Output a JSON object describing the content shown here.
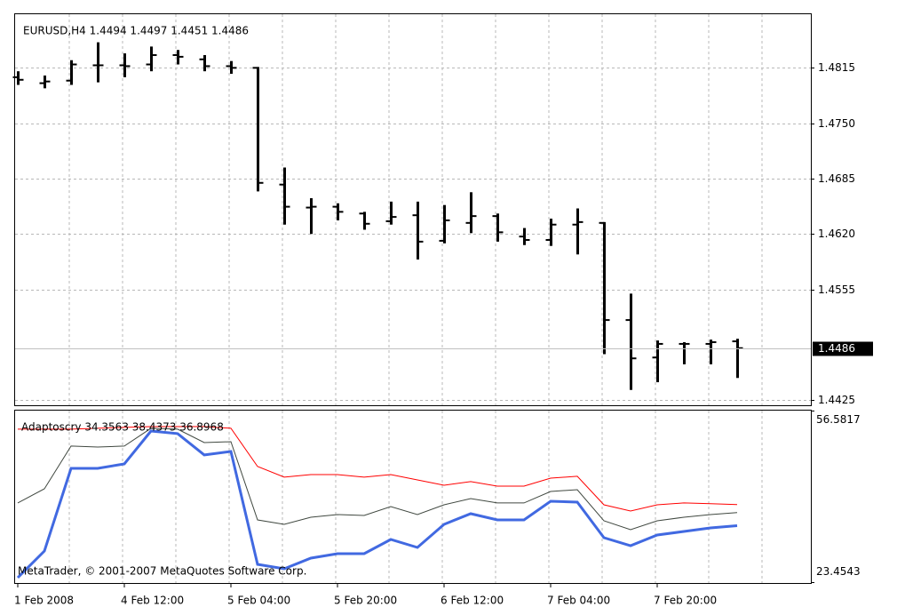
{
  "chart_data": [
    {
      "type": "ohlc",
      "title": "EURUSD,H4  1.4494 1.4497 1.4451 1.4486",
      "categories": [
        "1 Feb 2008",
        null,
        null,
        null,
        "4 Feb 12:00",
        null,
        null,
        null,
        "5 Feb 04:00",
        null,
        null,
        null,
        "5 Feb 20:00",
        null,
        null,
        null,
        "6 Feb 12:00",
        null,
        null,
        null,
        "7 Feb 04:00",
        null,
        null,
        null,
        "7 Feb 20:00",
        null,
        null,
        null
      ],
      "open": [
        1.4804,
        1.4797,
        1.48,
        1.4818,
        1.4818,
        1.4819,
        1.483,
        1.4825,
        1.4817,
        1.4815,
        1.4678,
        1.4651,
        1.4652,
        1.4644,
        1.4635,
        1.4642,
        1.4612,
        1.4633,
        1.4641,
        1.4617,
        1.4613,
        1.4631,
        1.4633,
        1.4519,
        1.4475,
        1.4491,
        1.4491,
        1.4494
      ],
      "high": [
        1.4811,
        1.4806,
        1.4824,
        1.4845,
        1.4832,
        1.484,
        1.4836,
        1.483,
        1.4823,
        1.4816,
        1.4698,
        1.4662,
        1.4656,
        1.4646,
        1.4658,
        1.4658,
        1.4654,
        1.4669,
        1.4644,
        1.4627,
        1.4638,
        1.465,
        1.4634,
        1.455,
        1.4495,
        1.4493,
        1.4496,
        1.4497
      ],
      "low": [
        1.4795,
        1.4791,
        1.4795,
        1.4798,
        1.4804,
        1.4811,
        1.4819,
        1.4811,
        1.4808,
        1.467,
        1.4631,
        1.462,
        1.4636,
        1.4625,
        1.4631,
        1.459,
        1.4609,
        1.4621,
        1.4611,
        1.4607,
        1.4606,
        1.4596,
        1.4479,
        1.4437,
        1.4446,
        1.4467,
        1.4467,
        1.4451
      ],
      "close": [
        1.4801,
        1.4799,
        1.4819,
        1.4818,
        1.4817,
        1.483,
        1.4828,
        1.4817,
        1.4815,
        1.468,
        1.4652,
        1.4652,
        1.4646,
        1.4632,
        1.464,
        1.4611,
        1.4636,
        1.4641,
        1.4622,
        1.4613,
        1.4631,
        1.4634,
        1.4519,
        1.4474,
        1.4491,
        1.4491,
        1.4493,
        1.4486
      ],
      "color": "#000000",
      "ylim": [
        1.442,
        1.4879
      ],
      "yticks": [
        1.4815,
        {
          "value": 1.475,
          "label": "1.4750"
        },
        1.4685,
        {
          "value": 1.462,
          "label": "1.4620"
        },
        1.4555,
        1.4425
      ],
      "grid": true
    },
    {
      "type": "line",
      "title": "Adaptoscry 34.3563 38.4373 36.8968",
      "annotation": "MetaTrader, © 2001-2007 MetaQuotes Software Corp.",
      "series": [
        {
          "name": "upper",
          "color": "#ff0000",
          "values": [
            52.99,
            52.99,
            52.99,
            53.16,
            53.33,
            53.5,
            53.5,
            53.5,
            53.16,
            45.78,
            43.72,
            44.23,
            44.23,
            43.72,
            44.23,
            43.2,
            42.17,
            42.86,
            42.0,
            42.0,
            43.54,
            43.89,
            38.39,
            37.19,
            38.39,
            38.74,
            38.6,
            38.4373
          ]
        },
        {
          "name": "middle",
          "color": "#404840",
          "values": [
            38.74,
            41.48,
            49.73,
            49.55,
            49.73,
            53.16,
            52.99,
            50.41,
            50.58,
            35.47,
            34.61,
            35.99,
            36.5,
            36.33,
            38.05,
            36.5,
            38.39,
            39.59,
            38.74,
            38.74,
            40.97,
            41.31,
            35.3,
            33.58,
            35.3,
            35.99,
            36.5,
            36.8968
          ]
        },
        {
          "name": "lower",
          "color": "#4169e1",
          "values": [
            24.31,
            29.46,
            45.43,
            45.43,
            46.29,
            52.64,
            52.13,
            48.01,
            48.69,
            26.89,
            26.03,
            28.09,
            28.95,
            28.95,
            31.7,
            30.15,
            34.61,
            36.67,
            35.47,
            35.47,
            39.08,
            38.91,
            32.04,
            30.49,
            32.55,
            33.24,
            33.93,
            34.3563
          ]
        }
      ],
      "ylim": [
        23.4543,
        56.5817
      ],
      "yticks": [
        56.5817,
        23.4543
      ]
    }
  ]
}
